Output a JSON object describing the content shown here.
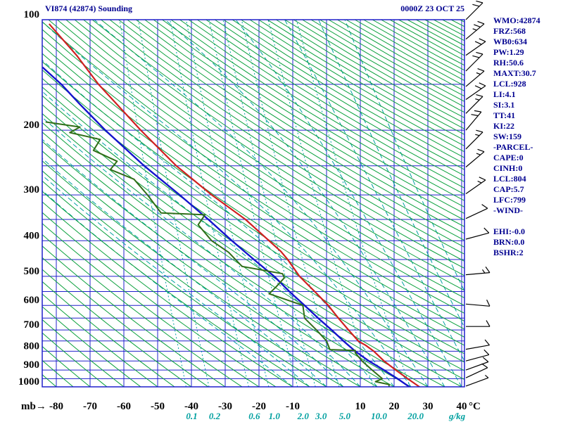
{
  "header": {
    "title": "VI874 (42874) Sounding",
    "datetime": "0000Z 23 OCT 25"
  },
  "stats_panel": {
    "color": "#000090",
    "lines": [
      "WMO:42874",
      "FRZ:568",
      "WB0:634",
      "PW:1.29",
      "RH:50.6",
      "MAXT:30.7",
      "LCL:928",
      "LI:4.1",
      "SI:3.1",
      "TT:41",
      "KI:22",
      "SW:159",
      "-PARCEL-",
      "CAPE:0",
      "CINH:0",
      "LCL:804",
      "CAP:5.7",
      "LFC:799",
      "-WIND-",
      "",
      "EHI:-0.0",
      "BRN:0.0",
      "BSHR:2"
    ]
  },
  "axis_labels": {
    "pressure_unit": "mb→",
    "temp_unit": "°C",
    "mixing_unit": "g/kg"
  },
  "chart_data": {
    "type": "line",
    "title": "VI874 (42874) Sounding emagram (log-p vs temperature)",
    "x_axis": {
      "label": "°C",
      "min": -84,
      "max": 41,
      "ticks": [
        -80,
        -70,
        -60,
        -50,
        -40,
        -30,
        -20,
        -10,
        10,
        20,
        30,
        40
      ]
    },
    "y_axis": {
      "label": "mb",
      "scale": "log",
      "min": 100,
      "max": 1000,
      "ticks": [
        100,
        200,
        300,
        400,
        500,
        600,
        700,
        800,
        900,
        1000
      ]
    },
    "isobar_lines_mb": [
      100,
      150,
      200,
      250,
      300,
      350,
      400,
      450,
      500,
      550,
      600,
      650,
      700,
      750,
      800,
      850,
      900,
      950,
      1000
    ],
    "isotherm_lines_c": {
      "start": -80,
      "end": 40,
      "step": 10
    },
    "dry_adiabats_c": {
      "start": -80,
      "end": 335,
      "step": 5
    },
    "moist_adiabats_c": {
      "start": -10,
      "end": 55,
      "step": 5
    },
    "mixing_ratio_g_kg": [
      0.1,
      0.2,
      0.6,
      1.0,
      2.0,
      3.0,
      5.0,
      10.0,
      20.0
    ],
    "colors": {
      "grid": "#2020cc",
      "frame": "#2020cc",
      "dry_adiabat": "#0aa03c",
      "moist_adiabat": "#00a0a0",
      "mixing_ratio": "#00a0a0",
      "temperature": "#d02020",
      "wet_bulb": "#1414cc",
      "dewpoint": "#306e18"
    },
    "series": [
      {
        "name": "temperature",
        "color": "#d02020",
        "width": 2.2,
        "points_p_t": [
          [
            1000,
            27.5
          ],
          [
            950,
            24
          ],
          [
            900,
            20.5
          ],
          [
            850,
            17
          ],
          [
            800,
            14
          ],
          [
            770,
            11.5
          ],
          [
            752,
            9.5
          ],
          [
            700,
            6.5
          ],
          [
            650,
            3.5
          ],
          [
            600,
            0.5
          ],
          [
            550,
            -3.5
          ],
          [
            500,
            -8
          ],
          [
            450,
            -11.5
          ],
          [
            428,
            -13.5
          ],
          [
            400,
            -17
          ],
          [
            350,
            -24
          ],
          [
            300,
            -34
          ],
          [
            250,
            -44.5
          ],
          [
            200,
            -55
          ],
          [
            150,
            -67.5
          ],
          [
            125,
            -74
          ],
          [
            103,
            -82
          ]
        ]
      },
      {
        "name": "wet-bulb",
        "color": "#1414cc",
        "width": 2.4,
        "points_p_t": [
          [
            1000,
            24.5
          ],
          [
            950,
            21
          ],
          [
            900,
            17
          ],
          [
            850,
            12.5
          ],
          [
            800,
            8.5
          ],
          [
            750,
            5
          ],
          [
            700,
            1.5
          ],
          [
            650,
            -2.5
          ],
          [
            600,
            -6.5
          ],
          [
            550,
            -11
          ],
          [
            500,
            -15.5
          ],
          [
            450,
            -21.5
          ],
          [
            400,
            -28
          ],
          [
            350,
            -35
          ],
          [
            300,
            -43.5
          ],
          [
            250,
            -54
          ],
          [
            200,
            -65.5
          ],
          [
            170,
            -73
          ],
          [
            150,
            -78.5
          ],
          [
            135,
            -84
          ]
        ]
      },
      {
        "name": "dewpoint",
        "color": "#306e18",
        "width": 2,
        "points_p_t": [
          [
            1000,
            18.5
          ],
          [
            985,
            18.5
          ],
          [
            968,
            14.5
          ],
          [
            950,
            16.5
          ],
          [
            900,
            13.5
          ],
          [
            850,
            10.5
          ],
          [
            808,
            8.5
          ],
          [
            796,
            8.5
          ],
          [
            792,
            1
          ],
          [
            750,
            0
          ],
          [
            700,
            -3
          ],
          [
            650,
            -6.5
          ],
          [
            600,
            -7
          ],
          [
            558,
            -17
          ],
          [
            535,
            -15
          ],
          [
            505,
            -12.5
          ],
          [
            492,
            -13
          ],
          [
            470,
            -25
          ],
          [
            430,
            -29
          ],
          [
            400,
            -34
          ],
          [
            362,
            -38
          ],
          [
            340,
            -36
          ],
          [
            336,
            -49
          ],
          [
            300,
            -53
          ],
          [
            272,
            -57
          ],
          [
            256,
            -64
          ],
          [
            243,
            -62
          ],
          [
            227,
            -69
          ],
          [
            212,
            -67
          ],
          [
            203,
            -76
          ],
          [
            196,
            -73
          ],
          [
            190,
            -83
          ]
        ]
      }
    ],
    "wind_barbs": [
      {
        "p": 100,
        "dir_deg": 45,
        "speed_kt": 20
      },
      {
        "p": 113,
        "dir_deg": 50,
        "speed_kt": 25
      },
      {
        "p": 125,
        "dir_deg": 55,
        "speed_kt": 20
      },
      {
        "p": 138,
        "dir_deg": 45,
        "speed_kt": 20
      },
      {
        "p": 152,
        "dir_deg": 50,
        "speed_kt": 15
      },
      {
        "p": 165,
        "dir_deg": 55,
        "speed_kt": 20
      },
      {
        "p": 180,
        "dir_deg": 45,
        "speed_kt": 15
      },
      {
        "p": 200,
        "dir_deg": 40,
        "speed_kt": 20
      },
      {
        "p": 225,
        "dir_deg": 45,
        "speed_kt": 15
      },
      {
        "p": 252,
        "dir_deg": 50,
        "speed_kt": 15
      },
      {
        "p": 298,
        "dir_deg": 55,
        "speed_kt": 15
      },
      {
        "p": 348,
        "dir_deg": 65,
        "speed_kt": 10
      },
      {
        "p": 396,
        "dir_deg": 75,
        "speed_kt": 10
      },
      {
        "p": 495,
        "dir_deg": 85,
        "speed_kt": 15
      },
      {
        "p": 595,
        "dir_deg": 95,
        "speed_kt": 10
      },
      {
        "p": 685,
        "dir_deg": 90,
        "speed_kt": 10
      },
      {
        "p": 790,
        "dir_deg": 80,
        "speed_kt": 10
      },
      {
        "p": 850,
        "dir_deg": 75,
        "speed_kt": 10
      },
      {
        "p": 900,
        "dir_deg": 70,
        "speed_kt": 10
      },
      {
        "p": 945,
        "dir_deg": 65,
        "speed_kt": 10
      },
      {
        "p": 995,
        "dir_deg": 70,
        "speed_kt": 5
      }
    ]
  }
}
